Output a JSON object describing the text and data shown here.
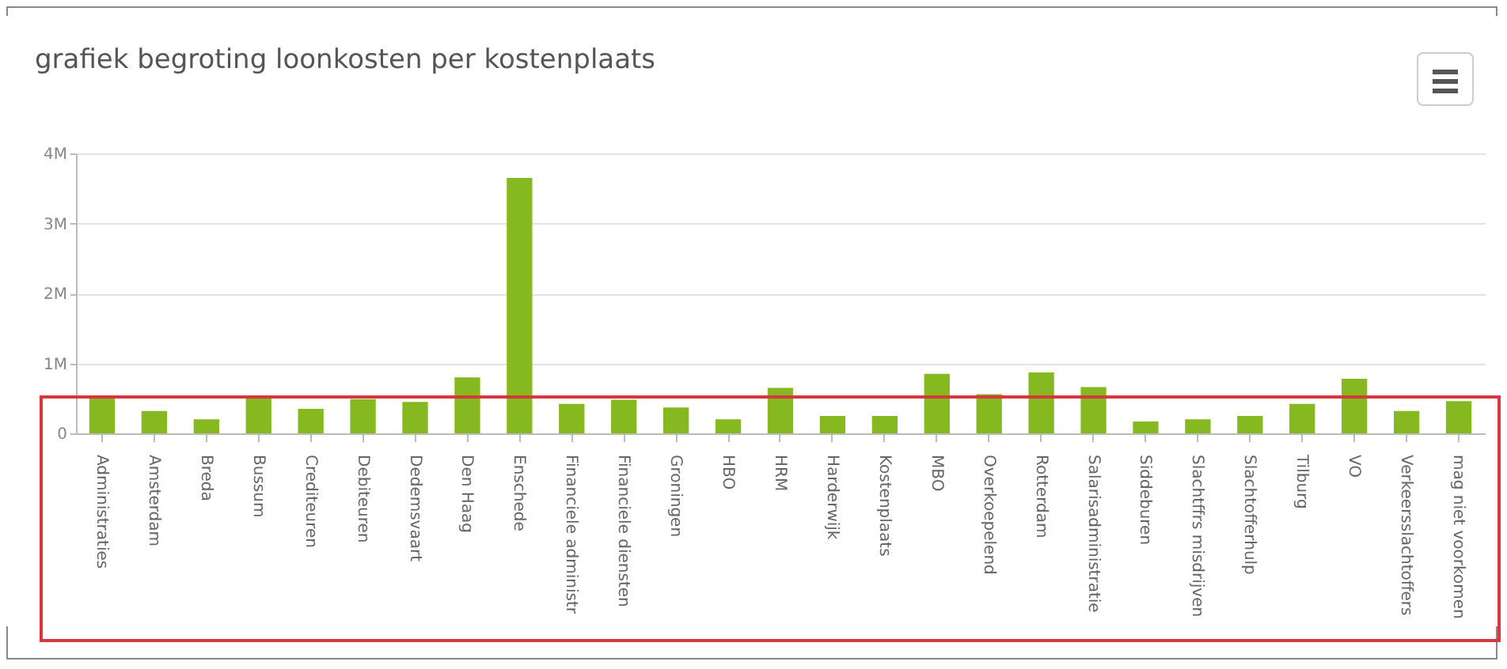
{
  "chart_data": {
    "type": "bar",
    "title": "grafiek begroting loonkosten per kostenplaats",
    "categories": [
      "Administraties",
      "Amsterdam",
      "Breda",
      "Bussum",
      "Crediteuren",
      "Debiteuren",
      "Dedemsvaart",
      "Den Haag",
      "Enschede",
      "Financiele administr",
      "Financiele diensten",
      "Groningen",
      "HBO",
      "HRM",
      "Harderwijk",
      "Kostenplaats",
      "MBO",
      "Overkoepelend",
      "Rotterdam",
      "Salarisadministratie",
      "Siddeburen",
      "Slachtffrs misdrijven",
      "Slachtofferhulp",
      "Tilburg",
      "VO",
      "Verkeersslachtoffers",
      "mag niet voorkomen"
    ],
    "values": [
      510000,
      320000,
      200000,
      540000,
      350000,
      490000,
      450000,
      800000,
      3650000,
      420000,
      480000,
      370000,
      200000,
      650000,
      250000,
      250000,
      850000,
      560000,
      870000,
      660000,
      170000,
      200000,
      250000,
      420000,
      780000,
      320000,
      460000
    ],
    "color": "#86b920",
    "ylim": [
      0,
      4000000
    ],
    "yticks": [
      0,
      {
        "value": 1000000,
        "label": "1M"
      },
      {
        "value": 2000000,
        "label": "2M"
      },
      {
        "value": 3000000,
        "label": "3M"
      },
      {
        "value": 4000000,
        "label": "4M"
      }
    ],
    "grid": true
  }
}
